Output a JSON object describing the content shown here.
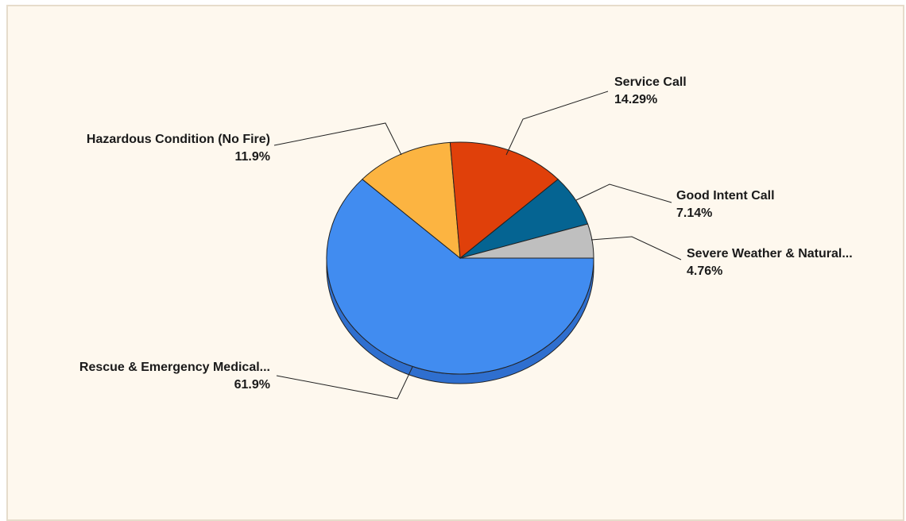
{
  "chart_data": {
    "type": "pie",
    "style": "3d",
    "legend": "none",
    "slices": [
      {
        "label": "Rescue & Emergency Medical...",
        "value": 61.9,
        "value_label": "61.9%",
        "color": "#418cf0",
        "side_color": "#2f6fcf"
      },
      {
        "label": "Hazardous Condition (No Fire)",
        "value": 11.9,
        "value_label": "11.9%",
        "color": "#fcb441",
        "side_color": "#d9952c"
      },
      {
        "label": "Service Call",
        "value": 14.29,
        "value_label": "14.29%",
        "color": "#e0400a",
        "side_color": "#b5330a"
      },
      {
        "label": "Good Intent Call",
        "value": 7.14,
        "value_label": "7.14%",
        "color": "#056492",
        "side_color": "#044b6e"
      },
      {
        "label": "Severe Weather & Natural...",
        "value": 4.76,
        "value_label": "4.76%",
        "color": "#bfbfbf",
        "side_color": "#9a9a9a"
      }
    ]
  },
  "colors": {
    "background": "#fef8ee",
    "border": "#e6dccb"
  }
}
